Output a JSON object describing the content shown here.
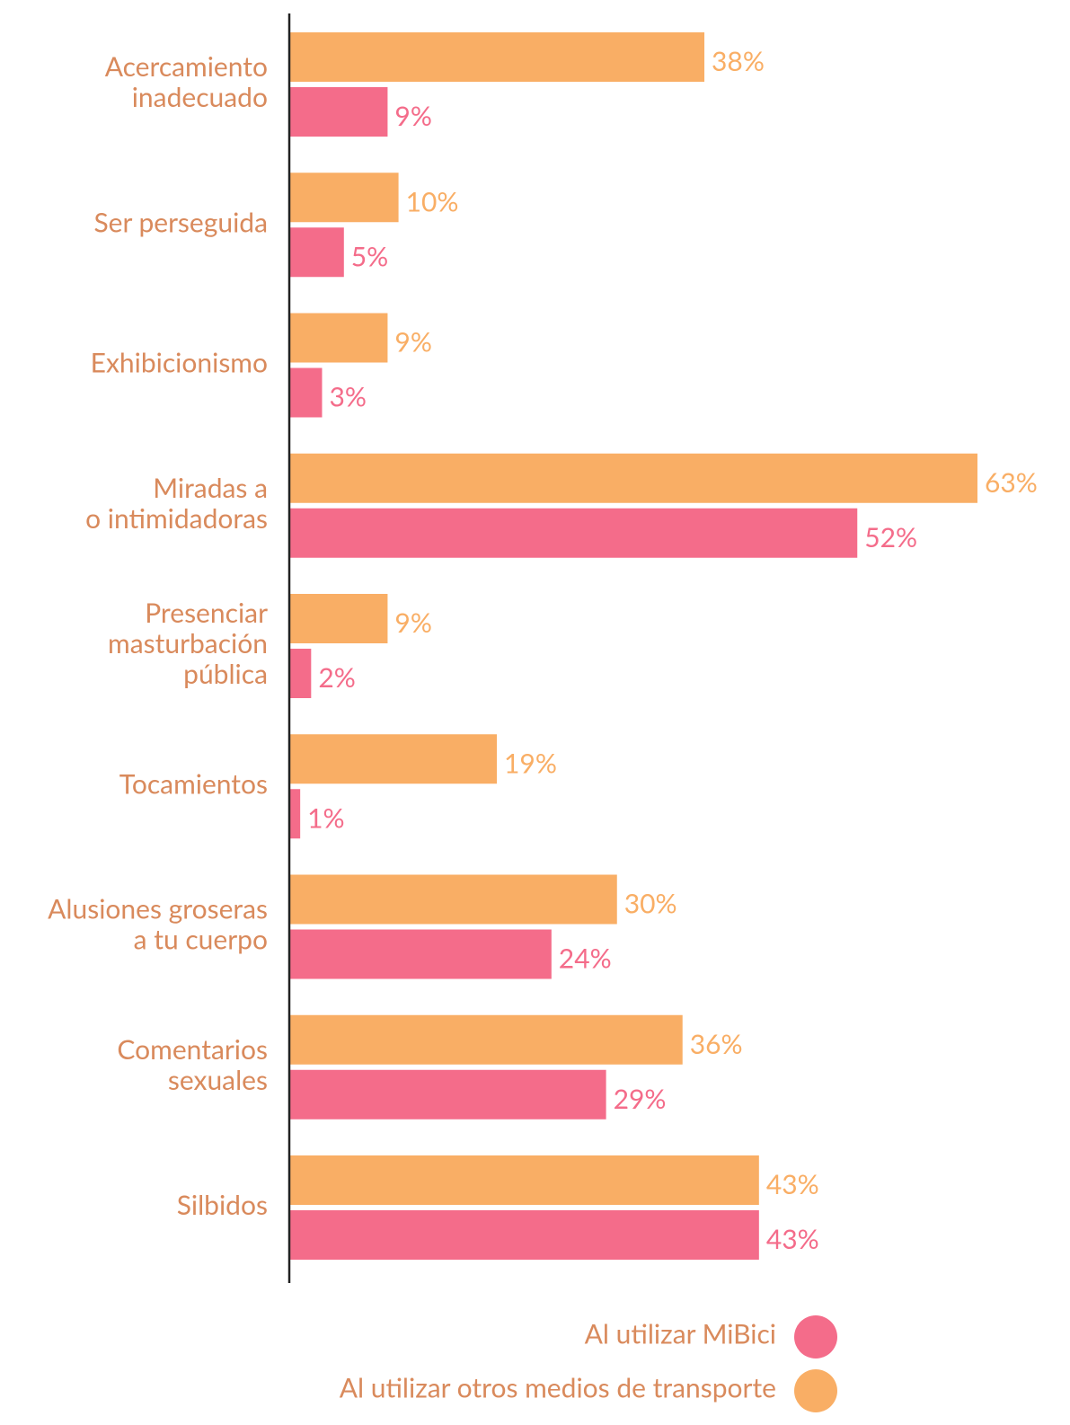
{
  "chart_data": {
    "type": "hbar",
    "categories": [
      "Acercamiento\ninadecuado",
      "Ser perseguida",
      "Exhibicionismo",
      "Miradas a\no intimidadoras",
      "Presenciar\nmasturbación\npública",
      "Tocamientos",
      "Alusiones groseras\na tu cuerpo",
      "Comentarios\nsexuales",
      "Silbidos"
    ],
    "series": [
      {
        "name": "Al utilizar MiBici",
        "color": "#f46c8a",
        "values": [
          9,
          5,
          3,
          52,
          2,
          1,
          24,
          29,
          43
        ],
        "value_labels": [
          "9%",
          "5%",
          "3%",
          "52%",
          "2%",
          "1%",
          "24%",
          "29%",
          "43%"
        ]
      },
      {
        "name": "Al utilizar otros medios de transporte",
        "color": "#f9ae65",
        "values": [
          38,
          10,
          9,
          63,
          9,
          19,
          30,
          36,
          43
        ],
        "value_labels": [
          "38%",
          "10%",
          "9%",
          "63%",
          "9%",
          "19%",
          "30%",
          "36%",
          "43%"
        ]
      }
    ],
    "xlim": [
      0,
      63
    ],
    "label_color": "#d98a5c"
  }
}
